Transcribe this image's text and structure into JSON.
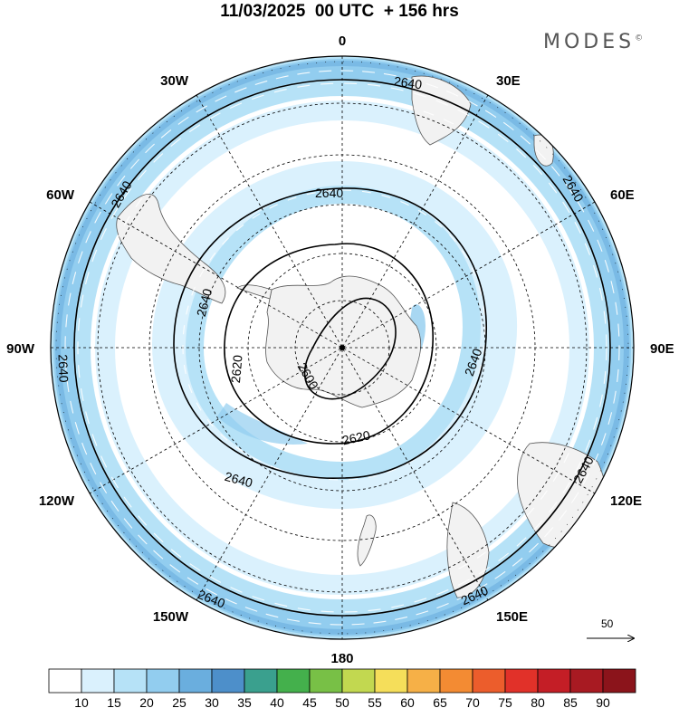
{
  "header": {
    "title": "11/03/2025  00 UTC  + 156 hrs",
    "brand": "MODES",
    "brand_mark": "©"
  },
  "map": {
    "projection": "south-polar-stereographic",
    "longitude_labels": [
      {
        "text": "0",
        "lon": 0
      },
      {
        "text": "30E",
        "lon": 30
      },
      {
        "text": "60E",
        "lon": 60
      },
      {
        "text": "90E",
        "lon": 90
      },
      {
        "text": "120E",
        "lon": 120
      },
      {
        "text": "150E",
        "lon": 150
      },
      {
        "text": "180",
        "lon": 180
      },
      {
        "text": "150W",
        "lon": -150
      },
      {
        "text": "120W",
        "lon": -120
      },
      {
        "text": "90W",
        "lon": -90
      },
      {
        "text": "60W",
        "lon": -60
      },
      {
        "text": "30W",
        "lon": -30
      }
    ],
    "contour_labels": [
      {
        "text": "2640",
        "id": "outer-top"
      },
      {
        "text": "2640",
        "id": "outer-right-top"
      },
      {
        "text": "2640",
        "id": "outer-right-bottom"
      },
      {
        "text": "2640",
        "id": "outer-bottom-right"
      },
      {
        "text": "2640",
        "id": "outer-bottom-left"
      },
      {
        "text": "2640",
        "id": "outer-left"
      },
      {
        "text": "2640",
        "id": "outer-left-top"
      },
      {
        "text": "2640",
        "id": "inner-top"
      },
      {
        "text": "2640",
        "id": "inner-right"
      },
      {
        "text": "2640",
        "id": "inner-bottom"
      },
      {
        "text": "2640",
        "id": "inner-left"
      },
      {
        "text": "2620",
        "id": "mid-left"
      },
      {
        "text": "2620",
        "id": "mid-bottom"
      },
      {
        "text": "2600",
        "id": "core"
      }
    ],
    "wind_scale_label": "50",
    "colors": {
      "land": "#f2f2f2",
      "ocean": "#ffffff",
      "contour": "#000000",
      "grid": "#000000"
    }
  },
  "colorbar": {
    "labels": [
      "10",
      "15",
      "20",
      "25",
      "30",
      "35",
      "40",
      "45",
      "50",
      "55",
      "60",
      "65",
      "70",
      "75",
      "80",
      "85",
      "90"
    ],
    "colors": [
      "#ffffff",
      "#daf1fd",
      "#b6e2f7",
      "#92cdef",
      "#6aaede",
      "#4d8fca",
      "#3aa08e",
      "#44b04c",
      "#78c046",
      "#c2d850",
      "#f5de5a",
      "#f6b047",
      "#f38b33",
      "#ec5d2c",
      "#e13129",
      "#c41e26",
      "#a81a22",
      "#8b141b"
    ]
  }
}
